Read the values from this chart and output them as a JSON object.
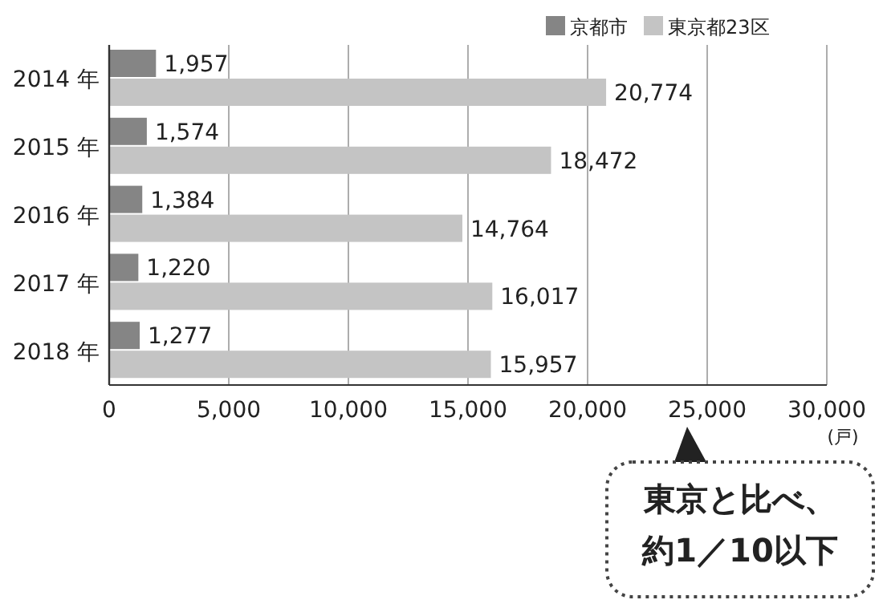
{
  "chart_data": {
    "type": "bar",
    "orientation": "horizontal",
    "categories": [
      "2014 年",
      "2015 年",
      "2016 年",
      "2017 年",
      "2018 年"
    ],
    "series": [
      {
        "name": "京都市",
        "color": "#858585",
        "values": [
          1957,
          1574,
          1384,
          1220,
          1277
        ],
        "value_labels": [
          "1,957",
          "1,574",
          "1,384",
          "1,220",
          "1,277"
        ]
      },
      {
        "name": "東京都23区",
        "color": "#c4c4c4",
        "values": [
          20774,
          18472,
          14764,
          16017,
          15957
        ],
        "value_labels": [
          "20,774",
          "18,472",
          "14,764",
          "16,017",
          "15,957"
        ]
      }
    ],
    "xlim": [
      0,
      30000
    ],
    "xticks": [
      0,
      {
        "value": 5000,
        "label": "5,000"
      },
      {
        "value": 10000,
        "label": "10,000"
      },
      {
        "value": 15000,
        "label": "15,000"
      },
      {
        "value": 20000,
        "label": "20,000"
      },
      {
        "value": 25000,
        "label": "25,000"
      },
      {
        "value": 30000,
        "label": "30,000"
      }
    ],
    "xlabel": "(戸)",
    "grid": "x",
    "legend": "top right",
    "annotations": [
      "東京と比べ、",
      "約1／10以下"
    ]
  }
}
